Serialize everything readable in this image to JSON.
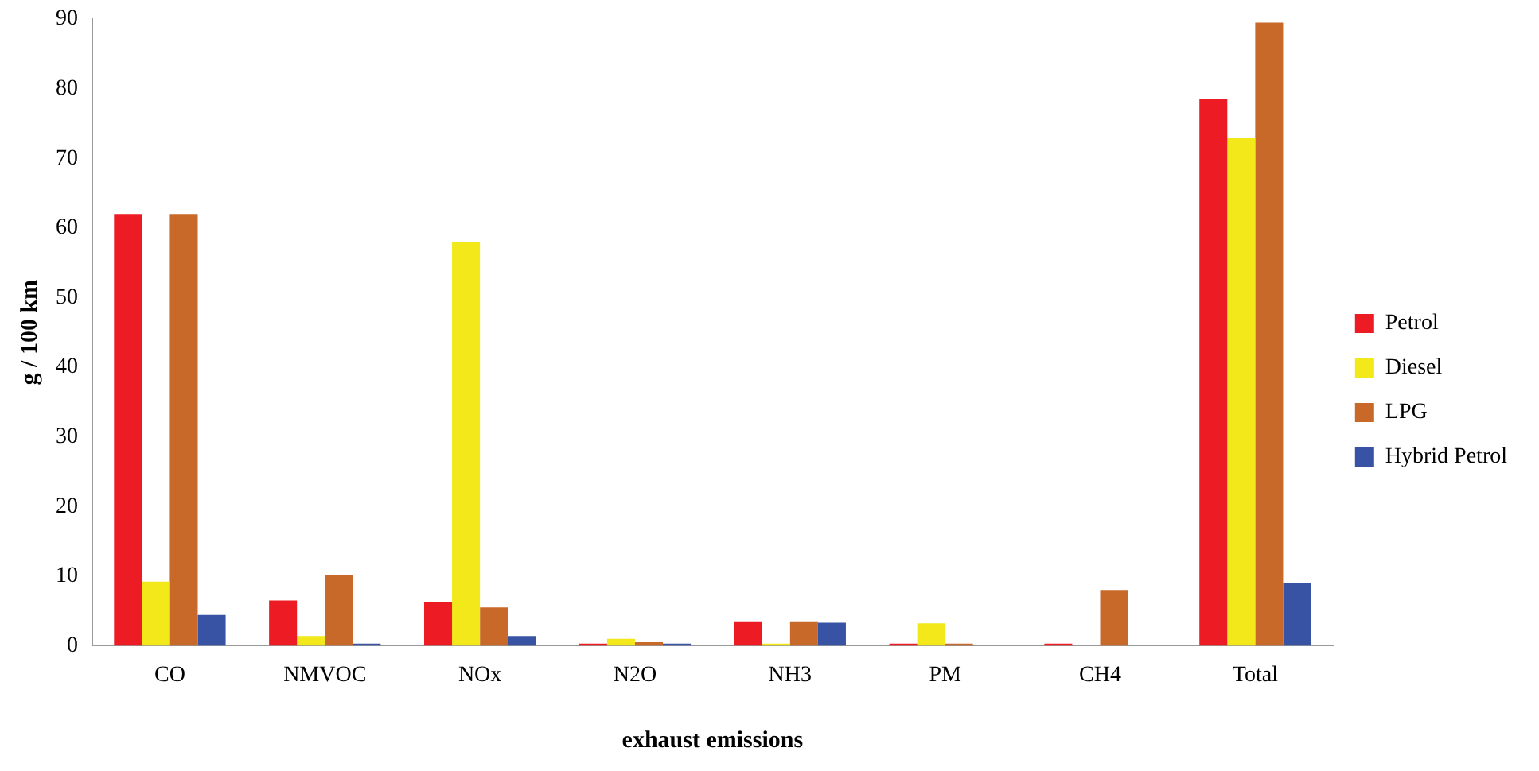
{
  "chart_data": {
    "type": "bar",
    "xlabel": "exhaust emissions",
    "ylabel": "g / 100 km",
    "categories": [
      "CO",
      "NMVOC",
      "NOx",
      "N2O",
      "NH3",
      "PM",
      "CH4",
      "Total"
    ],
    "series": [
      {
        "name": "Petrol",
        "color": "#ed1c24",
        "values": [
          62,
          6.5,
          6.2,
          0.3,
          3.5,
          0.3,
          0.3,
          78.5
        ]
      },
      {
        "name": "Diesel",
        "color": "#f2e81a",
        "values": [
          9.2,
          1.4,
          58,
          1,
          0.3,
          3.2,
          0,
          73
        ]
      },
      {
        "name": "LPG",
        "color": "#c8692a",
        "values": [
          62,
          10.1,
          5.5,
          0.5,
          3.5,
          0.3,
          8,
          89.5
        ]
      },
      {
        "name": "Hybrid Petrol",
        "color": "#3953a4",
        "values": [
          4.4,
          0.3,
          1.4,
          0.3,
          3.3,
          0,
          0,
          9
        ]
      }
    ],
    "ylim": [
      0,
      90
    ],
    "yticks": [
      0,
      10,
      20,
      30,
      40,
      50,
      60,
      70,
      80,
      90
    ],
    "grid": false,
    "legend": "right"
  }
}
